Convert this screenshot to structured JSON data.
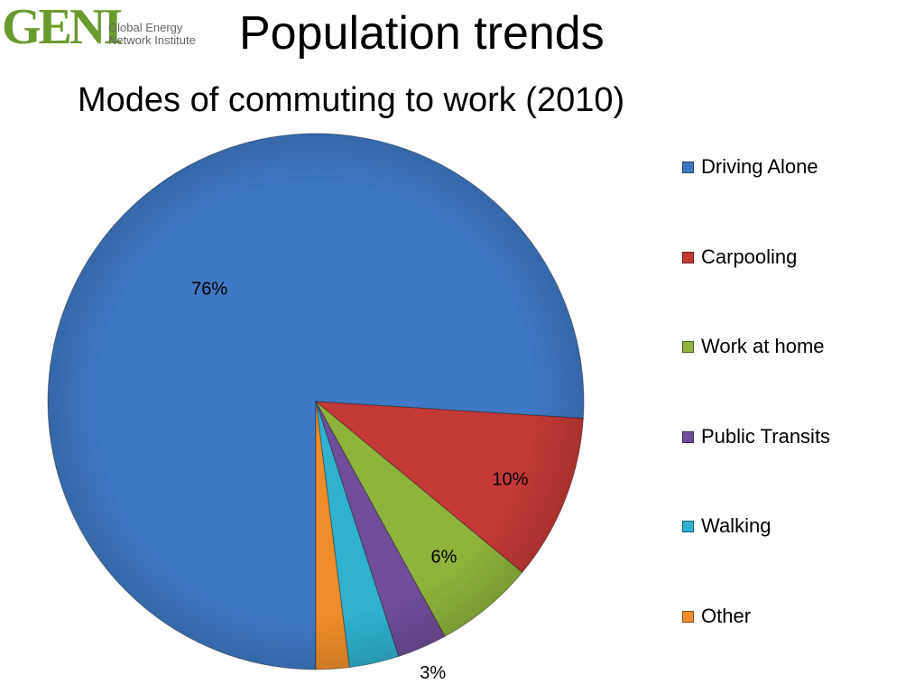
{
  "logo": {
    "mark": "GENI",
    "name": "Global Energy Network Institute"
  },
  "slide": {
    "title": "Population trends",
    "subtitle": "Modes of commuting to work (2010)"
  },
  "chart_data": {
    "type": "pie",
    "title": "Modes of commuting to work (2010)",
    "start_angle_deg": 90,
    "direction": "clockwise",
    "legend_position": "right",
    "slices": [
      {
        "label": "Driving Alone",
        "value": 76,
        "display": "76%",
        "color": "#3e78c4"
      },
      {
        "label": "Carpooling",
        "value": 10,
        "display": "10%",
        "color": "#c23a36"
      },
      {
        "label": "Work at home",
        "value": 6,
        "display": "6%",
        "color": "#8fb33c"
      },
      {
        "label": "Public Transits",
        "value": 3,
        "display": "3%",
        "color": "#6f4d9a"
      },
      {
        "label": "Walking",
        "value": 3,
        "display": "3%",
        "color": "#2fb1cf"
      },
      {
        "label": "Other",
        "value": 2,
        "display": "2%",
        "color": "#ef8d2a"
      }
    ]
  }
}
